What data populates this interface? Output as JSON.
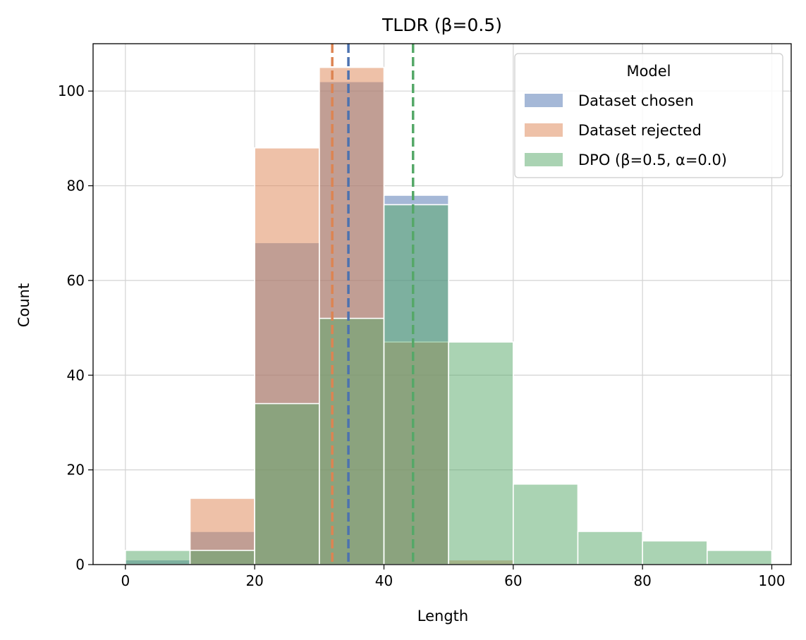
{
  "chart_data": {
    "type": "bar",
    "title": "TLDR (β=0.5)",
    "xlabel": "Length",
    "ylabel": "Count",
    "xlim": [
      -5,
      103
    ],
    "ylim": [
      0,
      110
    ],
    "xticks": [
      0,
      20,
      40,
      60,
      80,
      100
    ],
    "yticks": [
      0,
      20,
      40,
      60,
      80,
      100
    ],
    "grid": true,
    "legend": {
      "title": "Model",
      "placement": "top-right"
    },
    "bins": [
      [
        0,
        10
      ],
      [
        10,
        20
      ],
      [
        20,
        30
      ],
      [
        30,
        40
      ],
      [
        40,
        50
      ],
      [
        50,
        60
      ],
      [
        60,
        70
      ],
      [
        70,
        80
      ],
      [
        80,
        90
      ],
      [
        90,
        100
      ]
    ],
    "series": [
      {
        "name": "Dataset chosen",
        "color": "#4c72b0",
        "values": [
          1,
          7,
          68,
          102,
          78,
          0,
          0,
          0,
          0,
          0
        ],
        "mean": 34.5
      },
      {
        "name": "Dataset rejected",
        "color": "#dd8452",
        "values": [
          0,
          14,
          88,
          105,
          47,
          1,
          0,
          0,
          0,
          0
        ],
        "mean": 32
      },
      {
        "name": "DPO (β=0.5, α=0.0)",
        "color": "#55a868",
        "values": [
          3,
          3,
          34,
          52,
          76,
          47,
          17,
          7,
          5,
          3
        ],
        "mean": 44.5
      }
    ]
  }
}
